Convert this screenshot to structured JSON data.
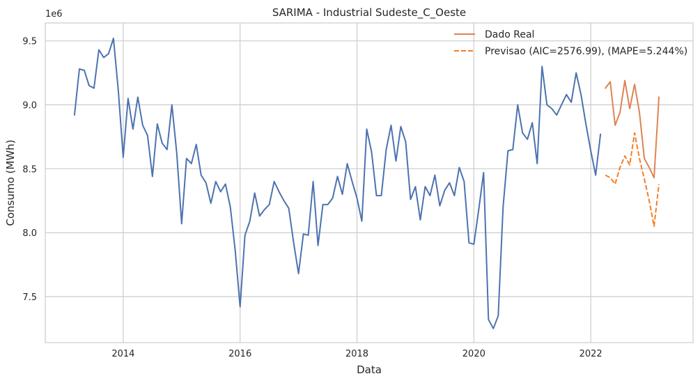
{
  "chart_data": {
    "type": "line",
    "title": "SARIMA - Industrial Sudeste_C_Oeste",
    "xlabel": "Data",
    "ylabel": "Consumo (MWh)",
    "y_offset_label": "1e6",
    "xlim": [
      "2012-09-01",
      "2023-10-01"
    ],
    "ylim": [
      7.14,
      9.64
    ],
    "yticks": [
      7.5,
      8.0,
      8.5,
      9.0,
      9.5
    ],
    "ytick_labels": [
      "7.5",
      "8.0",
      "8.5",
      "9.0",
      "9.5"
    ],
    "xticks": [
      "2014-01-01",
      "2016-01-01",
      "2018-01-01",
      "2020-01-01",
      "2022-01-01"
    ],
    "xtick_labels": [
      "2014",
      "2016",
      "2018",
      "2020",
      "2022"
    ],
    "grid": true,
    "legend_position": "top-right",
    "series": [
      {
        "name": "",
        "color": "#4c72b0",
        "style": "solid",
        "x": [
          "2013-03",
          "2013-04",
          "2013-05",
          "2013-06",
          "2013-07",
          "2013-08",
          "2013-09",
          "2013-10",
          "2013-11",
          "2013-12",
          "2014-01",
          "2014-02",
          "2014-03",
          "2014-04",
          "2014-05",
          "2014-06",
          "2014-07",
          "2014-08",
          "2014-09",
          "2014-10",
          "2014-11",
          "2014-12",
          "2015-01",
          "2015-02",
          "2015-03",
          "2015-04",
          "2015-05",
          "2015-06",
          "2015-07",
          "2015-08",
          "2015-09",
          "2015-10",
          "2015-11",
          "2015-12",
          "2016-01",
          "2016-02",
          "2016-03",
          "2016-04",
          "2016-05",
          "2016-06",
          "2016-07",
          "2016-08",
          "2016-09",
          "2016-10",
          "2016-11",
          "2016-12",
          "2017-01",
          "2017-02",
          "2017-03",
          "2017-04",
          "2017-05",
          "2017-06",
          "2017-07",
          "2017-08",
          "2017-09",
          "2017-10",
          "2017-11",
          "2017-12",
          "2018-01",
          "2018-02",
          "2018-03",
          "2018-04",
          "2018-05",
          "2018-06",
          "2018-07",
          "2018-08",
          "2018-09",
          "2018-10",
          "2018-11",
          "2018-12",
          "2019-01",
          "2019-02",
          "2019-03",
          "2019-04",
          "2019-05",
          "2019-06",
          "2019-07",
          "2019-08",
          "2019-09",
          "2019-10",
          "2019-11",
          "2019-12",
          "2020-01",
          "2020-02",
          "2020-03",
          "2020-04",
          "2020-05",
          "2020-06",
          "2020-07",
          "2020-08",
          "2020-09",
          "2020-10",
          "2020-11",
          "2020-12",
          "2021-01",
          "2021-02",
          "2021-03",
          "2021-04",
          "2021-05",
          "2021-06",
          "2021-07",
          "2021-08",
          "2021-09",
          "2021-10",
          "2021-11",
          "2021-12",
          "2022-01",
          "2022-02",
          "2022-03"
        ],
        "values": [
          8.92,
          9.28,
          9.27,
          9.15,
          9.13,
          9.43,
          9.37,
          9.4,
          9.52,
          9.11,
          8.59,
          9.05,
          8.81,
          9.06,
          8.84,
          8.76,
          8.44,
          8.85,
          8.7,
          8.65,
          9.0,
          8.62,
          8.07,
          8.58,
          8.54,
          8.69,
          8.45,
          8.39,
          8.23,
          8.4,
          8.32,
          8.38,
          8.2,
          7.86,
          7.42,
          7.98,
          8.09,
          8.31,
          8.13,
          8.18,
          8.22,
          8.4,
          8.32,
          8.25,
          8.19,
          7.92,
          7.68,
          7.99,
          7.98,
          8.4,
          7.9,
          8.22,
          8.22,
          8.27,
          8.44,
          8.3,
          8.54,
          8.4,
          8.27,
          8.09,
          8.81,
          8.63,
          8.29,
          8.29,
          8.65,
          8.84,
          8.56,
          8.83,
          8.71,
          8.26,
          8.36,
          8.1,
          8.36,
          8.29,
          8.45,
          8.21,
          8.33,
          8.39,
          8.29,
          8.51,
          8.4,
          7.92,
          7.91,
          8.18,
          8.47,
          7.32,
          7.25,
          7.35,
          8.2,
          8.64,
          8.65,
          9.0,
          8.78,
          8.73,
          8.86,
          8.54,
          9.3,
          9.0,
          8.97,
          8.92,
          9.0,
          9.08,
          9.02,
          9.25,
          9.08,
          8.85,
          8.64,
          8.45,
          8.77
        ]
      },
      {
        "name": "Dado Real",
        "color": "#dd8452",
        "style": "solid",
        "x": [
          "2022-04",
          "2022-05",
          "2022-06",
          "2022-07",
          "2022-08",
          "2022-09",
          "2022-10",
          "2022-11",
          "2022-12",
          "2023-01",
          "2023-02",
          "2023-03"
        ],
        "values": [
          9.13,
          9.18,
          8.84,
          8.94,
          9.19,
          8.97,
          9.16,
          8.94,
          8.58,
          8.51,
          8.43,
          9.06
        ]
      },
      {
        "name": "Previsao (AIC=2576.99), (MAPE=5.244%)",
        "color": "#f77d22",
        "style": "dashed",
        "x": [
          "2022-04",
          "2022-05",
          "2022-06",
          "2022-07",
          "2022-08",
          "2022-09",
          "2022-10",
          "2022-11",
          "2022-12",
          "2023-01",
          "2023-02",
          "2023-03"
        ],
        "values": [
          8.45,
          8.43,
          8.38,
          8.51,
          8.6,
          8.53,
          8.78,
          8.58,
          8.42,
          8.25,
          8.05,
          8.38
        ]
      }
    ]
  }
}
